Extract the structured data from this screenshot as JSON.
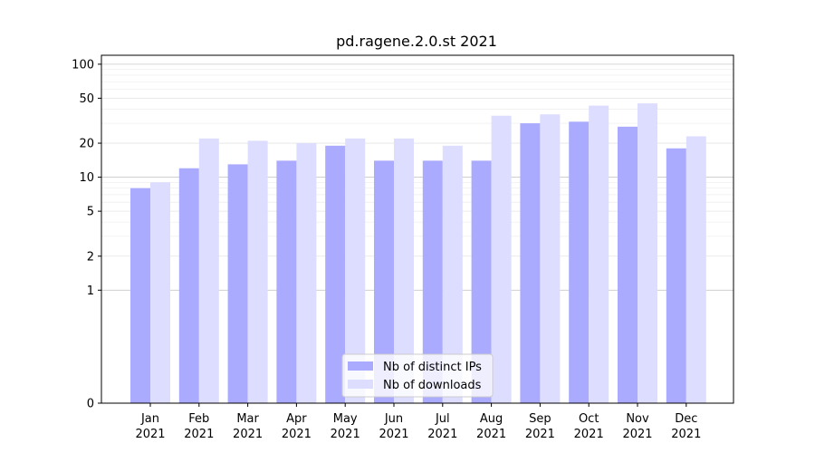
{
  "chart_data": {
    "type": "bar",
    "title": "pd.ragene.2.0.st 2021",
    "xlabel": "",
    "ylabel": "",
    "yscale": "symlog",
    "ylim": [
      0,
      120
    ],
    "yticks": [
      0,
      1,
      2,
      5,
      10,
      20,
      50,
      100
    ],
    "grid": true,
    "legend_position": "bottom-center",
    "categories": [
      {
        "month": "Jan",
        "year": "2021"
      },
      {
        "month": "Feb",
        "year": "2021"
      },
      {
        "month": "Mar",
        "year": "2021"
      },
      {
        "month": "Apr",
        "year": "2021"
      },
      {
        "month": "May",
        "year": "2021"
      },
      {
        "month": "Jun",
        "year": "2021"
      },
      {
        "month": "Jul",
        "year": "2021"
      },
      {
        "month": "Aug",
        "year": "2021"
      },
      {
        "month": "Sep",
        "year": "2021"
      },
      {
        "month": "Oct",
        "year": "2021"
      },
      {
        "month": "Nov",
        "year": "2021"
      },
      {
        "month": "Dec",
        "year": "2021"
      }
    ],
    "series": [
      {
        "name": "Nb of distinct IPs",
        "color": "#aaaaff",
        "values": [
          8,
          12,
          13,
          14,
          19,
          14,
          14,
          14,
          30,
          31,
          28,
          18
        ]
      },
      {
        "name": "Nb of downloads",
        "color": "#ddddff",
        "values": [
          9,
          22,
          21,
          20,
          22,
          22,
          19,
          35,
          36,
          43,
          45,
          23
        ]
      }
    ]
  }
}
